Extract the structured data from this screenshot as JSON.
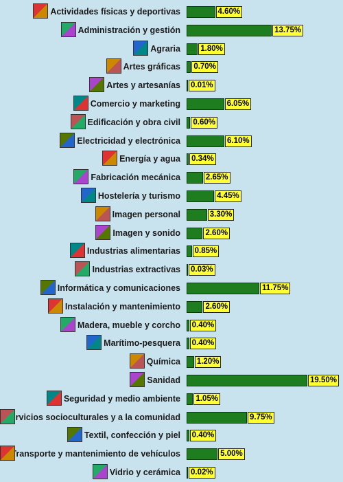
{
  "chart_data": {
    "type": "bar",
    "orientation": "horizontal",
    "categories": [
      "Actividades físicas y deportivas",
      "Administración y gestión",
      "Agraria",
      "Artes gráficas",
      "Artes y artesanías",
      "Comercio y marketing",
      "Edificación y obra civil",
      "Electricidad y electrónica",
      "Energía y agua",
      "Fabricación mecánica",
      "Hostelería y turismo",
      "Imagen personal",
      "Imagen y sonido",
      "Industrias alimentarias",
      "Industrias extractivas",
      "Informática y comunicaciones",
      "Instalación y mantenimiento",
      "Madera, mueble y corcho",
      "Marítimo-pesquera",
      "Química",
      "Sanidad",
      "Seguridad y medio ambiente",
      "Servicios socioculturales y a la comunidad",
      "Textil, confección y piel",
      "Transporte y mantenimiento de vehículos",
      "Vidrio y cerámica"
    ],
    "values": [
      4.6,
      13.75,
      1.8,
      0.7,
      0.01,
      6.05,
      0.6,
      6.1,
      0.34,
      2.65,
      4.45,
      3.3,
      2.6,
      0.85,
      0.03,
      11.75,
      2.6,
      0.4,
      0.4,
      1.2,
      19.5,
      1.05,
      9.75,
      0.4,
      5.0,
      0.02
    ],
    "value_labels": [
      "4.60%",
      "13.75%",
      "1.80%",
      "0.70%",
      "0.01%",
      "6.05%",
      "0.60%",
      "6.10%",
      "0.34%",
      "2.65%",
      "4.45%",
      "3.30%",
      "2.60%",
      "0.85%",
      "0.03%",
      "11.75%",
      "2.60%",
      "0.40%",
      "0.40%",
      "1.20%",
      "19.50%",
      "1.05%",
      "9.75%",
      "0.40%",
      "5.00%",
      "0.02%"
    ],
    "icons": [
      "athlete-icon",
      "office-document-icon",
      "plants-icon",
      "printing-icon",
      "paint-palette-icon",
      "business-people-icon",
      "construction-icon",
      "electrical-plug-icon",
      "water-energy-icon",
      "factory-icon",
      "palm-tree-icon",
      "woman-face-icon",
      "video-camera-icon",
      "food-cans-icon",
      "mining-truck-icon",
      "computer-icon",
      "utility-pole-icon",
      "tree-icon",
      "ship-icon",
      "chemistry-flask-icon",
      "first-aid-icon",
      "recycling-bin-icon",
      "people-group-icon",
      "sewing-icon",
      "vehicle-icon",
      "ceramics-icon"
    ],
    "xlim": [
      0,
      19.5
    ],
    "grid": false,
    "colors": {
      "background": "#c9e3ee",
      "bar": "#1e7d1e",
      "label_box": "#ffff33"
    }
  }
}
